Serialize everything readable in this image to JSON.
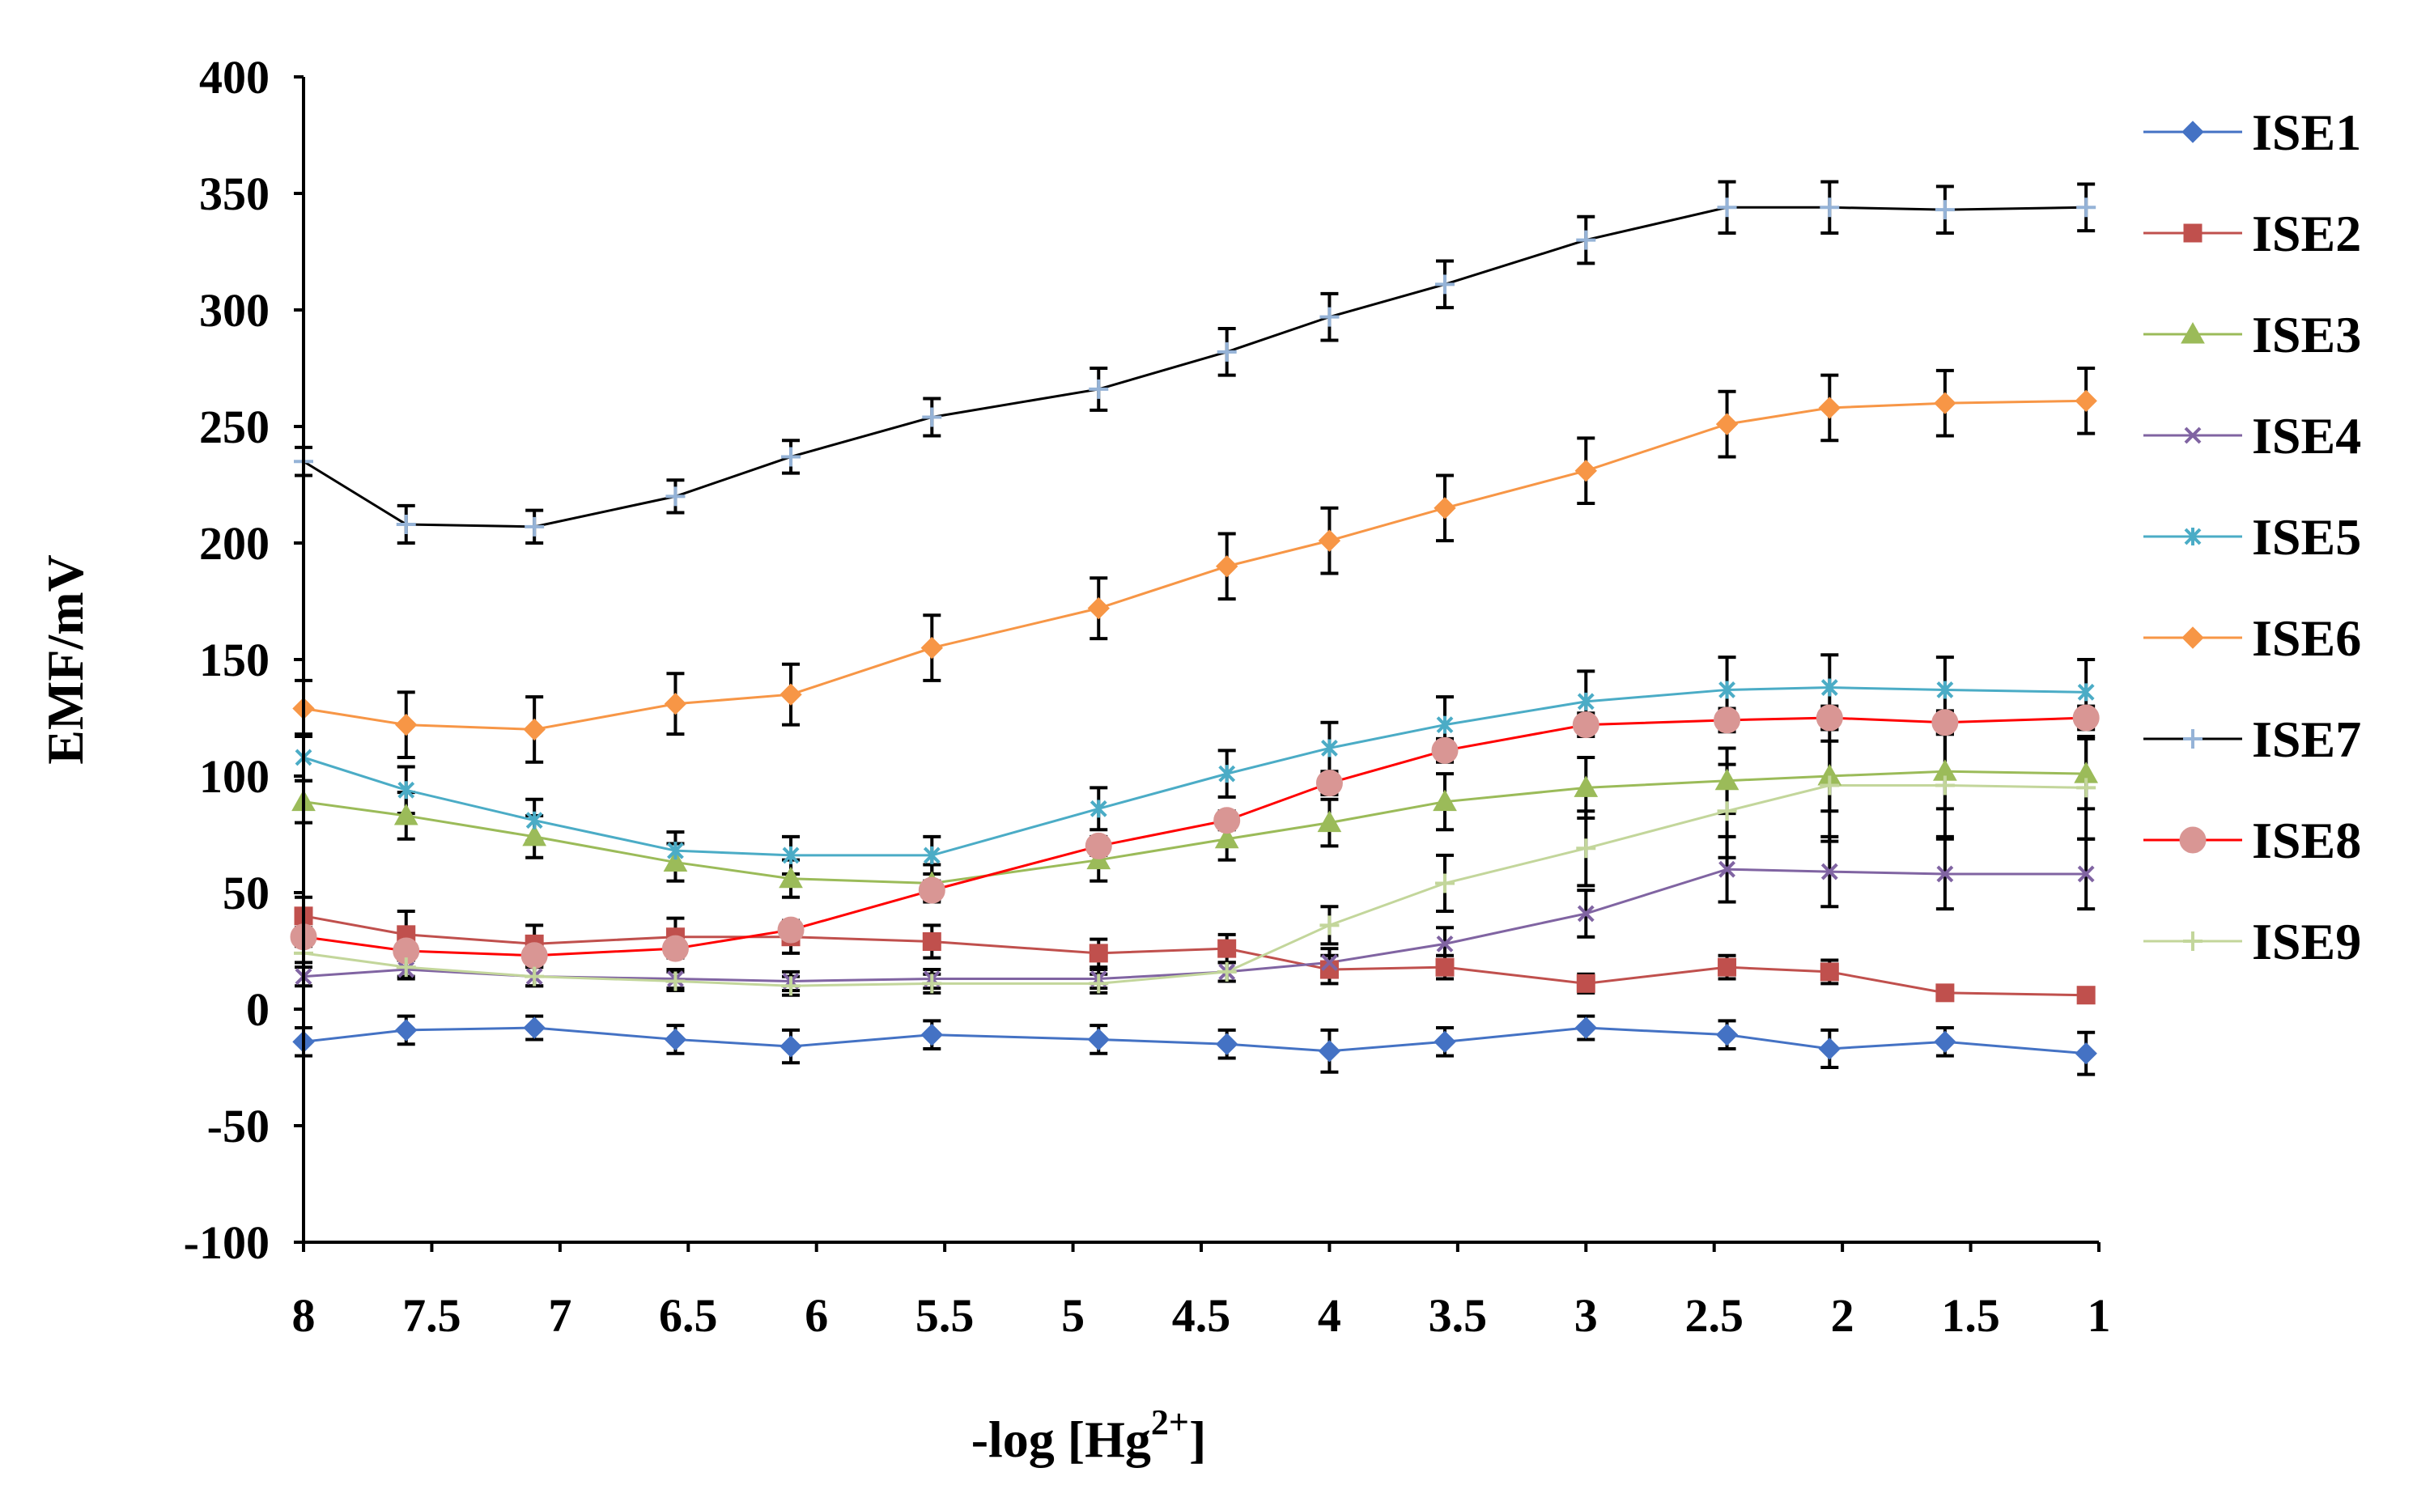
{
  "chart_data": {
    "type": "line",
    "title": "",
    "xlabel": "-log [Hg",
    "xlabel_superscript": "2+",
    "xlabel_suffix": "]",
    "ylabel": "EMF/mV",
    "xlim": [
      8,
      1
    ],
    "x_reversed": true,
    "ylim": [
      -100,
      400
    ],
    "x_ticks": [
      "8",
      "7.5",
      "7",
      "6.5",
      "6",
      "5.5",
      "5",
      "4.5",
      "4",
      "3.5",
      "3",
      "2.5",
      "2",
      "1.5",
      "1"
    ],
    "x_tick_values": [
      8,
      7.5,
      7,
      6.5,
      6,
      5.5,
      5,
      4.5,
      4,
      3.5,
      3,
      2.5,
      2,
      1.5,
      1
    ],
    "y_ticks": [
      "400",
      "350",
      "300",
      "250",
      "200",
      "150",
      "100",
      "50",
      "0",
      "-50",
      "-100"
    ],
    "y_tick_values": [
      400,
      350,
      300,
      250,
      200,
      150,
      100,
      50,
      0,
      -50,
      -100
    ],
    "grid": false,
    "legend_position": "right",
    "x": [
      8,
      7.6,
      7.1,
      6.55,
      6.1,
      5.55,
      4.9,
      4.4,
      4.0,
      3.55,
      3.0,
      2.45,
      2.05,
      1.6,
      1.05
    ],
    "series": [
      {
        "name": "ISE1",
        "color": "#4472C4",
        "marker": "diamond",
        "values": [
          -14,
          -9,
          -8,
          -13,
          -16,
          -11,
          -13,
          -15,
          -18,
          -14,
          -8,
          -11,
          -17,
          -14,
          -19
        ],
        "errors": [
          6,
          6,
          5,
          6,
          7,
          6,
          6,
          6,
          9,
          6,
          5,
          6,
          8,
          6,
          9
        ]
      },
      {
        "name": "ISE2",
        "color": "#C0504D",
        "marker": "square",
        "values": [
          40,
          32,
          28,
          31,
          31,
          29,
          24,
          26,
          17,
          18,
          11,
          18,
          16,
          7,
          6
        ],
        "errors": [
          8,
          10,
          8,
          8,
          7,
          7,
          6,
          6,
          6,
          5,
          4,
          5,
          5,
          3,
          3
        ]
      },
      {
        "name": "ISE3",
        "color": "#9BBB59",
        "marker": "triangle",
        "values": [
          89,
          83,
          74,
          63,
          56,
          54,
          64,
          73,
          80,
          89,
          95,
          98,
          100,
          102,
          101
        ],
        "errors": [
          9,
          10,
          9,
          8,
          8,
          8,
          9,
          9,
          10,
          12,
          13,
          14,
          15,
          16,
          15
        ]
      },
      {
        "name": "ISE4",
        "color": "#8064A2",
        "marker": "x",
        "values": [
          14,
          17,
          14,
          13,
          12,
          13,
          13,
          16,
          20,
          28,
          41,
          60,
          59,
          58,
          58
        ],
        "errors": [
          4,
          4,
          4,
          4,
          4,
          4,
          4,
          4,
          6,
          7,
          10,
          14,
          15,
          15,
          15
        ]
      },
      {
        "name": "ISE5",
        "color": "#4BACC6",
        "marker": "star",
        "values": [
          108,
          94,
          81,
          68,
          66,
          66,
          86,
          101,
          112,
          122,
          132,
          137,
          138,
          137,
          136
        ],
        "errors": [
          10,
          10,
          9,
          8,
          8,
          8,
          9,
          10,
          11,
          12,
          13,
          14,
          14,
          14,
          14
        ]
      },
      {
        "name": "ISE6",
        "color": "#F79646",
        "marker": "diamond",
        "values": [
          129,
          122,
          120,
          131,
          135,
          155,
          172,
          190,
          201,
          215,
          231,
          251,
          258,
          260,
          261
        ],
        "errors": [
          12,
          14,
          14,
          13,
          13,
          14,
          13,
          14,
          14,
          14,
          14,
          14,
          14,
          14,
          14
        ]
      },
      {
        "name": "ISE7",
        "color": "#95B3D7",
        "line_color": "#000000",
        "marker": "plus",
        "values": [
          235,
          208,
          207,
          220,
          237,
          254,
          266,
          282,
          297,
          311,
          330,
          344,
          344,
          343,
          344
        ],
        "errors": [
          6,
          8,
          7,
          7,
          7,
          8,
          9,
          10,
          10,
          10,
          10,
          11,
          11,
          10,
          10
        ]
      },
      {
        "name": "ISE8",
        "color": "#D99694",
        "line_color": "#FF0000",
        "marker": "circle",
        "values": [
          31,
          25,
          23,
          26,
          34,
          51,
          70,
          81,
          97,
          111,
          122,
          124,
          125,
          123,
          125
        ],
        "errors": [
          4,
          4,
          4,
          4,
          4,
          4,
          4,
          4,
          5,
          5,
          5,
          5,
          5,
          5,
          5
        ]
      },
      {
        "name": "ISE9",
        "color": "#C3D69B",
        "marker": "plus",
        "values": [
          24,
          18,
          14,
          12,
          10,
          11,
          11,
          16,
          36,
          54,
          69,
          85,
          96,
          96,
          95
        ],
        "errors": [
          4,
          4,
          4,
          4,
          4,
          4,
          4,
          4,
          8,
          12,
          16,
          20,
          24,
          22,
          22
        ]
      }
    ]
  }
}
